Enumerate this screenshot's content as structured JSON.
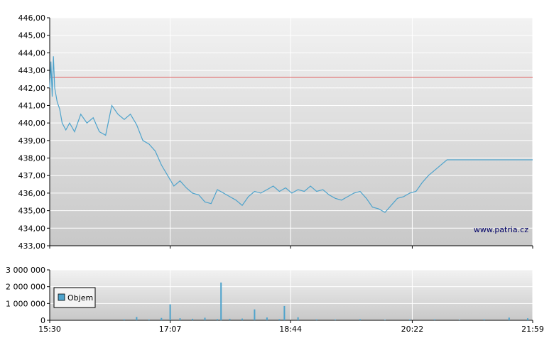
{
  "watermark": "www.patria.cz",
  "colors": {
    "price_line": "#4ea3cc",
    "reference_line": "#e06060",
    "volume_bar": "#4ea3cc",
    "grid_line": "#ffffff",
    "panel_top": "#f2f2f2",
    "panel_bottom": "#c8c8c8"
  },
  "chart_data": [
    {
      "type": "line",
      "title": "",
      "xlabel": "",
      "ylabel": "",
      "x_tick_labels": [
        "15:30",
        "17:07",
        "18:44",
        "20:22",
        "21:59"
      ],
      "y_tick_labels": [
        "433,00",
        "434,00",
        "435,00",
        "436,00",
        "437,00",
        "438,00",
        "439,00",
        "440,00",
        "441,00",
        "442,00",
        "443,00",
        "444,00",
        "445,00",
        "446,00"
      ],
      "ylim": [
        433,
        446
      ],
      "xlim": [
        "15:30",
        "21:59"
      ],
      "grid": true,
      "reference_line": 442.6,
      "series": [
        {
          "x": [
            "15:30",
            "15:31",
            "15:32",
            "15:33",
            "15:34",
            "15:36",
            "15:38",
            "15:40",
            "15:43",
            "15:46",
            "15:50",
            "15:55",
            "16:00",
            "16:05",
            "16:10",
            "16:15",
            "16:20",
            "16:25",
            "16:30",
            "16:35",
            "16:40",
            "16:45",
            "16:50",
            "16:55",
            "17:00",
            "17:05",
            "17:10",
            "17:15",
            "17:20",
            "17:25",
            "17:30",
            "17:35",
            "17:40",
            "17:45",
            "17:50",
            "17:55",
            "18:00",
            "18:05",
            "18:10",
            "18:15",
            "18:20",
            "18:25",
            "18:30",
            "18:35",
            "18:40",
            "18:45",
            "18:50",
            "18:55",
            "19:00",
            "19:05",
            "19:10",
            "19:15",
            "19:20",
            "19:25",
            "19:30",
            "19:35",
            "19:40",
            "19:45",
            "19:50",
            "19:55",
            "20:00",
            "20:05",
            "20:10",
            "20:15",
            "20:20",
            "20:25",
            "20:30",
            "20:35",
            "20:40",
            "20:45",
            "20:50",
            "20:55",
            "21:00",
            "21:05",
            "21:10",
            "21:15",
            "21:20",
            "21:25",
            "21:30",
            "21:35",
            "21:40",
            "21:45",
            "21:50",
            "21:55",
            "21:59"
          ],
          "y": [
            442.0,
            443.5,
            441.5,
            443.8,
            442.0,
            441.2,
            440.8,
            440.0,
            439.6,
            440.0,
            439.5,
            440.5,
            440.0,
            440.3,
            439.5,
            439.3,
            441.0,
            440.5,
            440.2,
            440.5,
            439.9,
            439.0,
            438.8,
            438.4,
            437.6,
            437.0,
            436.4,
            436.7,
            436.3,
            436.0,
            435.9,
            435.5,
            435.4,
            436.2,
            436.0,
            435.8,
            435.6,
            435.3,
            435.8,
            436.1,
            436.0,
            436.2,
            436.4,
            436.1,
            436.3,
            436.0,
            436.2,
            436.1,
            436.4,
            436.1,
            436.2,
            435.9,
            435.7,
            435.6,
            435.8,
            436.0,
            436.1,
            435.7,
            435.2,
            435.1,
            434.9,
            435.3,
            435.7,
            435.8,
            436.0,
            436.1,
            436.6,
            437.0,
            437.3,
            437.6,
            437.9,
            437.9,
            437.9,
            437.9,
            437.9,
            437.9,
            437.9,
            437.9,
            437.9,
            437.9,
            437.9,
            437.9,
            437.9,
            437.9,
            437.9
          ]
        }
      ]
    },
    {
      "type": "bar",
      "title": "",
      "legend": "Objem",
      "legend_position": "left",
      "y_tick_labels": [
        "0",
        "1 000 000",
        "2 000 000",
        "3 000 000"
      ],
      "ylim": [
        0,
        3000000
      ],
      "grid": true,
      "series": [
        {
          "name": "Objem",
          "x": [
            "16:30",
            "16:40",
            "16:50",
            "17:00",
            "17:07",
            "17:15",
            "17:25",
            "17:35",
            "17:45",
            "17:48",
            "17:55",
            "18:05",
            "18:15",
            "18:25",
            "18:35",
            "18:39",
            "18:50",
            "19:05",
            "19:20",
            "19:40",
            "20:00",
            "20:20",
            "20:40",
            "21:00",
            "21:20",
            "21:40",
            "21:55"
          ],
          "values": [
            60000,
            200000,
            50000,
            140000,
            950000,
            120000,
            90000,
            150000,
            70000,
            2250000,
            90000,
            100000,
            650000,
            170000,
            70000,
            850000,
            180000,
            60000,
            50000,
            70000,
            40000,
            50000,
            60000,
            40000,
            60000,
            160000,
            120000
          ]
        }
      ]
    }
  ]
}
